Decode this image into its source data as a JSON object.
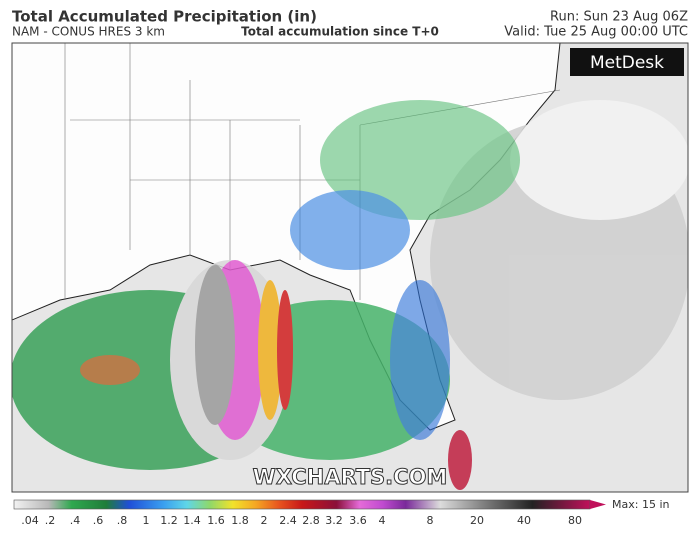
{
  "header": {
    "title": "Total Accumulated Precipitation (in)",
    "subtitle": "NAM - CONUS HRES 3 km",
    "center": "Total accumulation since T+0",
    "run": "Run: Sun 23 Aug 06Z",
    "valid": "Valid: Tue 25 Aug 00:00 UTC"
  },
  "logo": "MetDesk",
  "watermark": "WXCHARTS.COM",
  "colorbar": {
    "labels": [
      ".04",
      ".2",
      ".4",
      ".6",
      ".8",
      "1",
      "1.2",
      "1.4",
      "1.6",
      "1.8",
      "2",
      "2.4",
      "2.8",
      "3.2",
      "3.6",
      "4",
      "8",
      "20",
      "40",
      "80"
    ],
    "max": "Max: 15 in"
  }
}
